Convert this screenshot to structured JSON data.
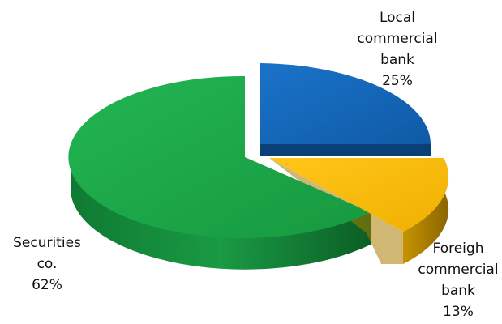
{
  "chart_data": {
    "type": "pie",
    "style": "3d-exploded",
    "title": "",
    "slices": [
      {
        "label": [
          "Local",
          "commercial",
          "bank"
        ],
        "value": 25,
        "value_label": "25%",
        "color": "#1565c0"
      },
      {
        "label": [
          "Foreigh",
          "commercial",
          "bank"
        ],
        "value": 13,
        "value_label": "13%",
        "color": "#ffc000"
      },
      {
        "label": [
          "Securities",
          "co."
        ],
        "value": 62,
        "value_label": "62%",
        "color": "#1ea84a"
      }
    ],
    "legend": "none"
  }
}
